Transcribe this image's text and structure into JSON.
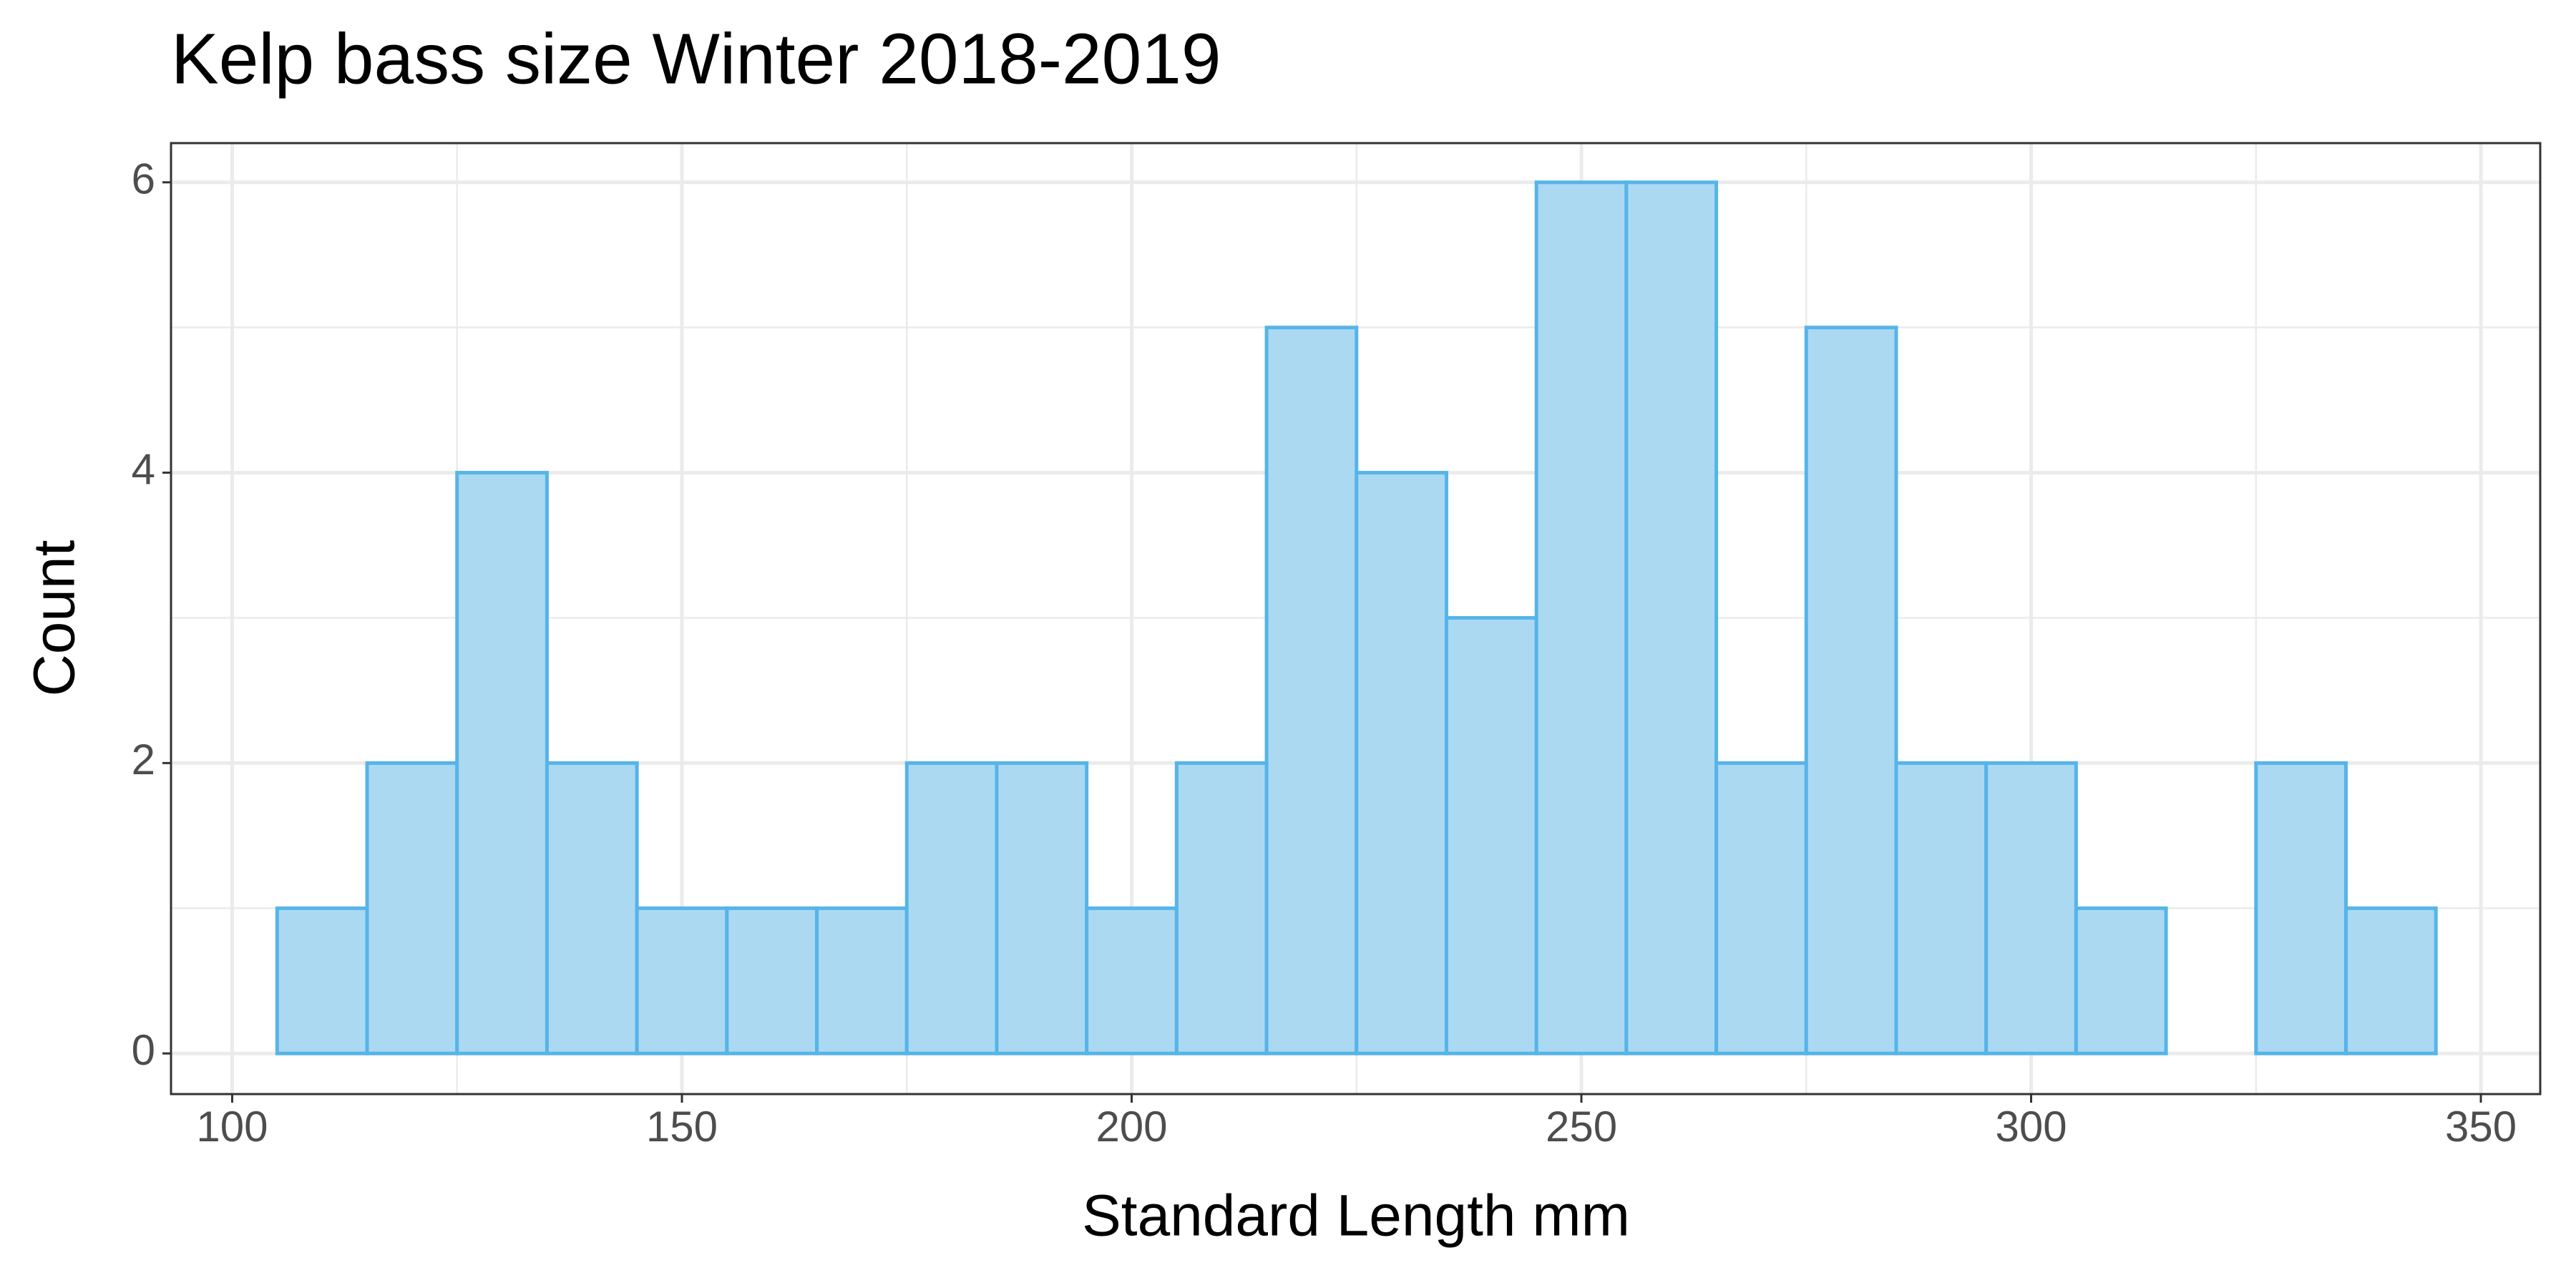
{
  "chart_data": {
    "type": "histogram",
    "title": "Kelp bass size Winter 2018-2019",
    "x_label": "Standard Length mm",
    "y_label": "Count",
    "bins": [
      105,
      115,
      125,
      135,
      145,
      155,
      165,
      175,
      185,
      195,
      205,
      215,
      225,
      235,
      245,
      255,
      265,
      275,
      285,
      295,
      305,
      315,
      325,
      335,
      345
    ],
    "values": [
      1,
      2,
      4,
      2,
      1,
      1,
      1,
      2,
      2,
      1,
      2,
      5,
      4,
      3,
      6,
      6,
      2,
      5,
      2,
      2,
      1,
      0,
      2,
      1
    ],
    "color": "#56b4e9",
    "fill": "#acd9f2",
    "xlim": [
      93.2,
      356.6
    ],
    "ylim": [
      -0.28,
      6.27
    ],
    "xticks": [
      100,
      150,
      200,
      250,
      300,
      350
    ],
    "yticks": [
      0,
      2,
      4,
      6
    ],
    "grid": true
  }
}
